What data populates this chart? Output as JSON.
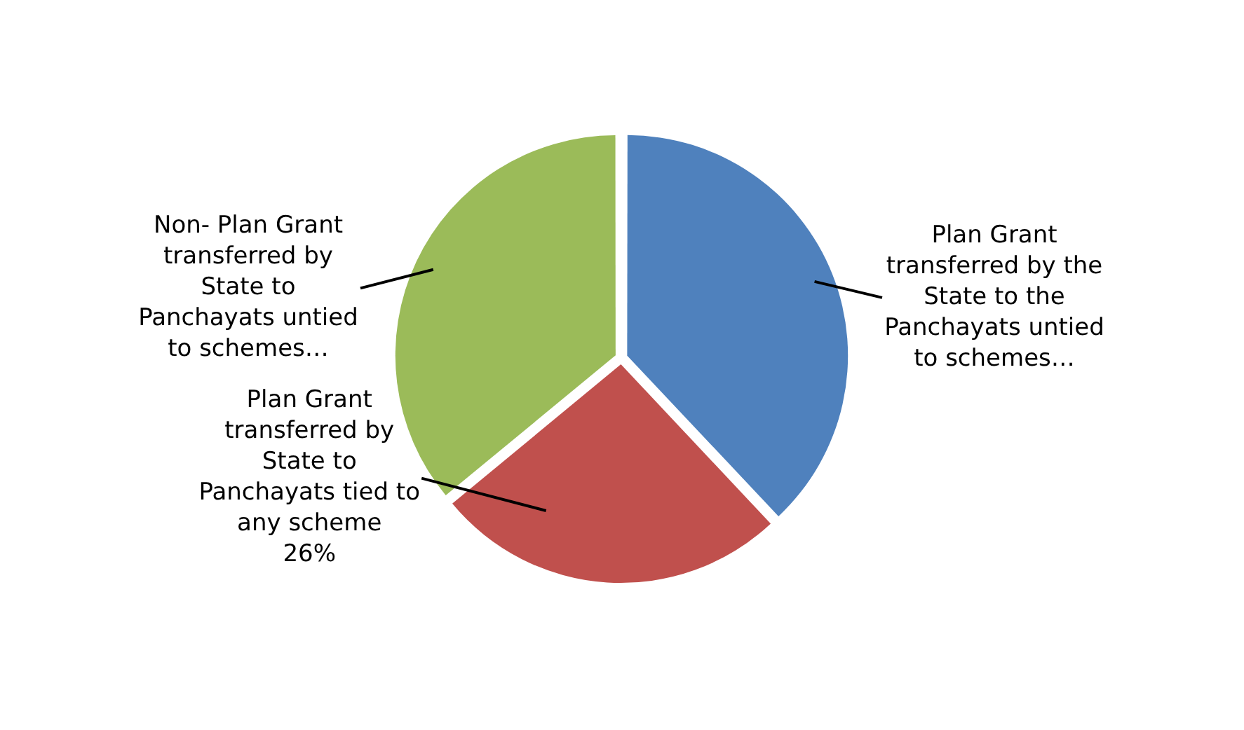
{
  "chart_data": {
    "type": "pie",
    "categories": [
      "Plan Grant transferred by the State to the Panchayats untied to schemes…",
      "Plan Grant transferred by State to Panchayats tied to any scheme",
      "Non- Plan Grant transferred by State to Panchayats untied to schemes…"
    ],
    "values": [
      38,
      26,
      36
    ],
    "colors": [
      "#4f81bd",
      "#c0504d",
      "#9bbb59"
    ],
    "value_labels": [
      null,
      "26%",
      null
    ],
    "legend": false
  }
}
